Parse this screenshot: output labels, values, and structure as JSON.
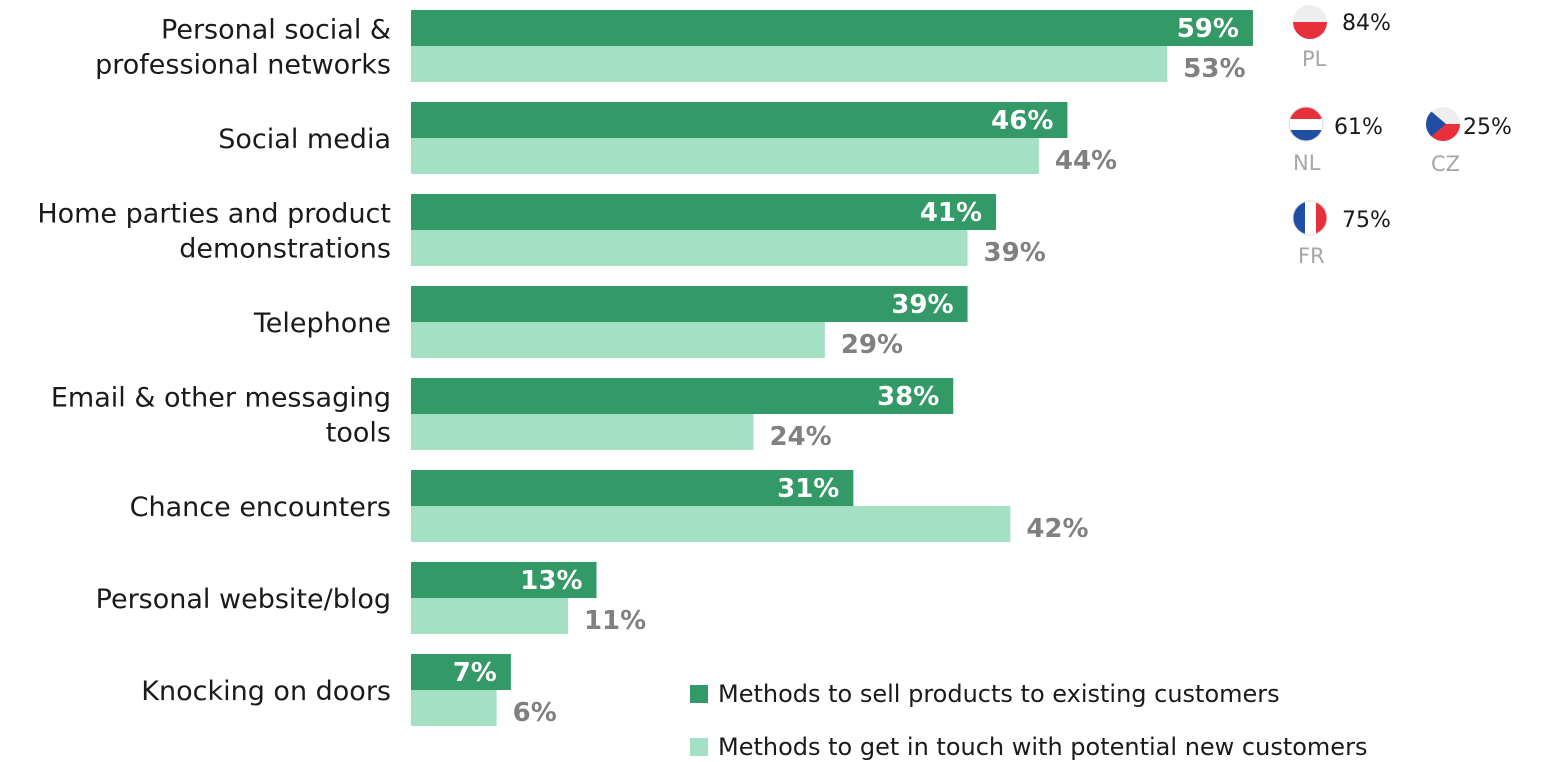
{
  "chart_data": {
    "type": "bar",
    "orientation": "horizontal",
    "categories": [
      [
        "Personal social &",
        "professional networks"
      ],
      [
        "Social media"
      ],
      [
        "Home parties and product",
        "demonstrations"
      ],
      [
        "Telephone"
      ],
      [
        "Email & other messaging",
        "tools"
      ],
      [
        "Chance encounters"
      ],
      [
        "Personal website/blog"
      ],
      [
        "Knocking on doors"
      ]
    ],
    "series": [
      {
        "name": "Methods to sell products to existing customers",
        "color": "#339966",
        "values": [
          59,
          46,
          41,
          39,
          38,
          31,
          13,
          7
        ],
        "labels": [
          "59%",
          "46%",
          "41%",
          "39%",
          "38%",
          "31%",
          "13%",
          "7%"
        ]
      },
      {
        "name": "Methods to get in touch with potential new customers",
        "color": "#a3e0c4",
        "values": [
          53,
          44,
          39,
          29,
          24,
          42,
          11,
          6
        ],
        "labels": [
          "53%",
          "44%",
          "39%",
          "29%",
          "24%",
          "42%",
          "11%",
          "6%"
        ]
      }
    ],
    "xlim": [
      0,
      59
    ],
    "grid": false,
    "legend_position": "bottom-right",
    "annotations": [
      {
        "country": "PL",
        "value": "84%",
        "flag": "poland-flag-icon"
      },
      {
        "country": "NL",
        "value": "61%",
        "flag": "netherlands-flag-icon"
      },
      {
        "country": "CZ",
        "value": "25%",
        "flag": "czech-flag-icon"
      },
      {
        "country": "FR",
        "value": "75%",
        "flag": "france-flag-icon"
      }
    ]
  }
}
